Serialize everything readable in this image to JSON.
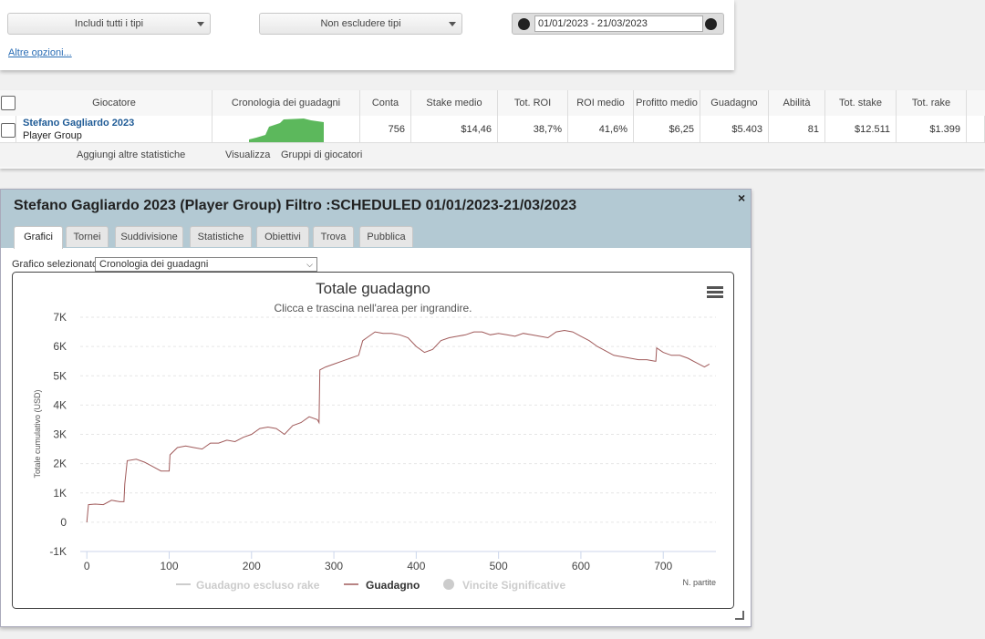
{
  "filters": {
    "include_types": "Includi tutti i tipi",
    "exclude_types": "Non escludere tipi",
    "date_range": "01/01/2023 - 21/03/2023",
    "more_options": "Altre opzioni..."
  },
  "table": {
    "headers": [
      "Giocatore",
      "Cronologia dei guadagni",
      "Conta",
      "Stake medio",
      "Tot. ROI",
      "ROI medio",
      "Profitto medio",
      "Guadagno",
      "Abilità",
      "Tot. stake",
      "Tot. rake"
    ],
    "rows": [
      {
        "name": "Stefano Gagliardo 2023",
        "group": "Player Group",
        "cells": [
          756,
          "$14,46",
          "38,7%",
          "41,6%",
          "$6,25",
          "$5.403",
          81,
          "$12.511",
          "$1.399"
        ]
      }
    ]
  },
  "toolbar": {
    "add_stats": "Aggiungi altre statistiche",
    "view": "Visualizza",
    "groups": "Gruppi di giocatori"
  },
  "dialog": {
    "title": "Stefano Gagliardo 2023 (Player Group) Filtro :SCHEDULED 01/01/2023-21/03/2023",
    "tabs": [
      "Grafici",
      "Tornei",
      "Suddivisione",
      "Statistiche",
      "Obiettivi",
      "Trova",
      "Pubblica"
    ],
    "selected_chart_label": "Grafico selezionato",
    "selected_chart": "Cronologia dei guadagni"
  },
  "chart_data": {
    "type": "line",
    "title": "Totale guadagno",
    "subtitle": "Clicca e trascina nell'area per ingrandire.",
    "y_label": "Totale cumulativo (USD)",
    "x_label": "N. partite",
    "xlim": [
      -8,
      764
    ],
    "xticks": [
      0,
      100,
      200,
      300,
      400,
      500,
      600,
      700
    ],
    "ylim": [
      -1000,
      7000
    ],
    "yticks": [
      {
        "value": -1000,
        "label": "-1K"
      },
      0,
      {
        "value": 1000,
        "label": "1K"
      },
      {
        "value": 2000,
        "label": "2K"
      },
      {
        "value": 3000,
        "label": "3K"
      },
      {
        "value": 4000,
        "label": "4K"
      },
      {
        "value": 5000,
        "label": "5K"
      },
      {
        "value": 6000,
        "label": "6K"
      },
      {
        "value": 7000,
        "label": "7K"
      }
    ],
    "grid": true,
    "x": [
      0,
      2,
      10,
      20,
      30,
      40,
      45,
      46,
      49,
      60,
      70,
      80,
      90,
      100,
      101,
      110,
      120,
      130,
      140,
      150,
      160,
      170,
      180,
      190,
      200,
      210,
      220,
      230,
      240,
      250,
      260,
      270,
      280,
      282,
      283,
      290,
      300,
      310,
      320,
      330,
      335,
      340,
      350,
      360,
      370,
      380,
      390,
      400,
      410,
      420,
      430,
      440,
      450,
      460,
      470,
      480,
      490,
      500,
      510,
      520,
      530,
      540,
      550,
      560,
      570,
      580,
      590,
      600,
      610,
      620,
      630,
      640,
      650,
      660,
      670,
      680,
      690,
      691,
      692,
      700,
      710,
      720,
      730,
      740,
      750,
      756
    ],
    "series": [
      {
        "name": "Guadagno",
        "color": "#a05a5a",
        "values": [
          0,
          600,
          620,
          600,
          750,
          700,
          700,
          1300,
          2100,
          2150,
          2050,
          1900,
          1750,
          1750,
          2300,
          2550,
          2600,
          2550,
          2500,
          2700,
          2700,
          2800,
          2750,
          2900,
          3000,
          3200,
          3250,
          3200,
          3000,
          3300,
          3400,
          3600,
          3500,
          3400,
          5200,
          5300,
          5400,
          5500,
          5600,
          5700,
          6200,
          6300,
          6500,
          6450,
          6450,
          6400,
          6300,
          6000,
          5800,
          5900,
          6200,
          6300,
          6350,
          6400,
          6500,
          6500,
          6400,
          6450,
          6400,
          6350,
          6450,
          6400,
          6350,
          6300,
          6500,
          6550,
          6500,
          6350,
          6200,
          6000,
          5850,
          5700,
          5650,
          5600,
          5550,
          5550,
          5500,
          5500,
          5950,
          5800,
          5700,
          5700,
          5600,
          5450,
          5300,
          5400
        ]
      }
    ],
    "hidden_series": [
      {
        "name": "Guadagno escluso rake",
        "color": "#cccccc",
        "marker": "line"
      },
      {
        "name": "Vincite Significative",
        "color": "#cccccc",
        "marker": "circle"
      }
    ]
  }
}
